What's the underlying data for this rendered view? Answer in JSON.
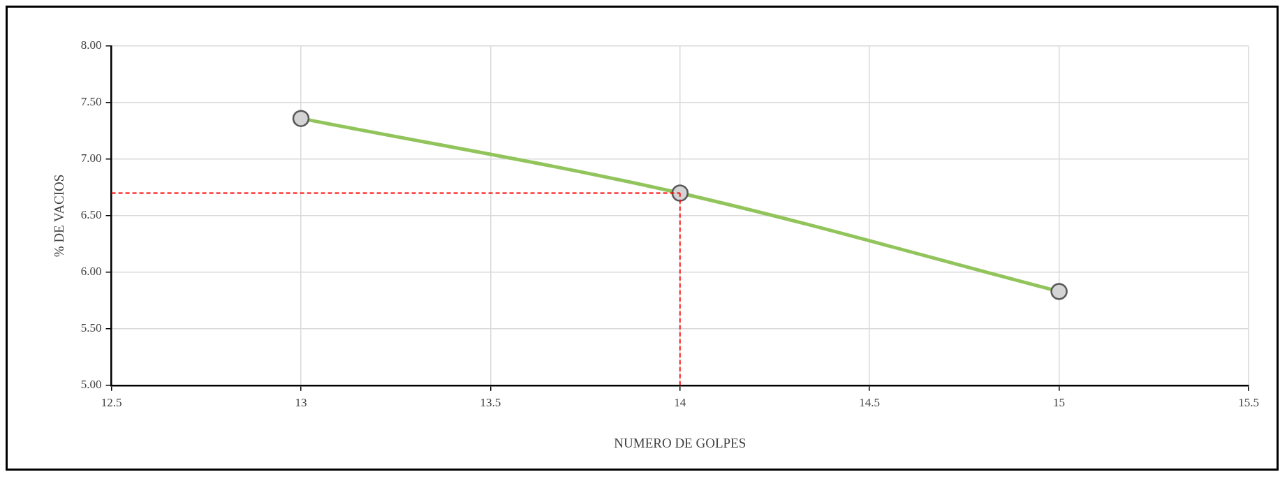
{
  "chart_data": {
    "type": "line",
    "xlabel": "NUMERO DE GOLPES",
    "ylabel": "% DE VACIOS",
    "x": [
      13,
      14,
      15
    ],
    "series": [
      {
        "color": "#92c45c",
        "values": [
          7.36,
          6.7,
          5.83
        ]
      }
    ],
    "xlim": [
      12.5,
      15.5
    ],
    "xticks": [
      12.5,
      13,
      13.5,
      14,
      14.5,
      15,
      15.5
    ],
    "ylim": [
      5,
      8
    ],
    "yticks": [
      {
        "value": 5,
        "label": "5.00"
      },
      {
        "value": 5.5,
        "label": "5.50"
      },
      {
        "value": 6,
        "label": "6.00"
      },
      {
        "value": 6.5,
        "label": "6.50"
      },
      {
        "value": 7,
        "label": "7.00"
      },
      {
        "value": 7.5,
        "label": "7.50"
      },
      {
        "value": 8,
        "label": "8.00"
      }
    ],
    "ref_lines": [
      {
        "axis": "y",
        "value": 6.7,
        "color": "#ff0000",
        "line_style": "dashed"
      },
      {
        "axis": "x",
        "value": 14,
        "color": "#ff0000",
        "line_style": "dashed"
      }
    ],
    "grid": true,
    "marker": "circle",
    "line_style": "solid",
    "legend": false
  }
}
